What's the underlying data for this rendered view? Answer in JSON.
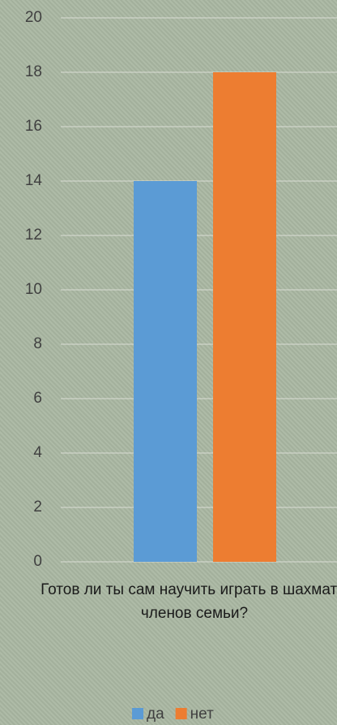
{
  "chart_data": {
    "type": "bar",
    "categories": [
      "Готов  ли ты сам научить играть в шахматы членов семьи?"
    ],
    "series": [
      {
        "name": "да",
        "color": "#5b9bd5",
        "values": [
          14
        ]
      },
      {
        "name": "нет",
        "color": "#ed7d31",
        "values": [
          18
        ]
      }
    ],
    "ylim": [
      0,
      20
    ],
    "yticks": [
      0,
      2,
      4,
      6,
      8,
      10,
      12,
      14,
      16,
      18,
      20
    ],
    "grid": true,
    "legend": "bottom"
  }
}
